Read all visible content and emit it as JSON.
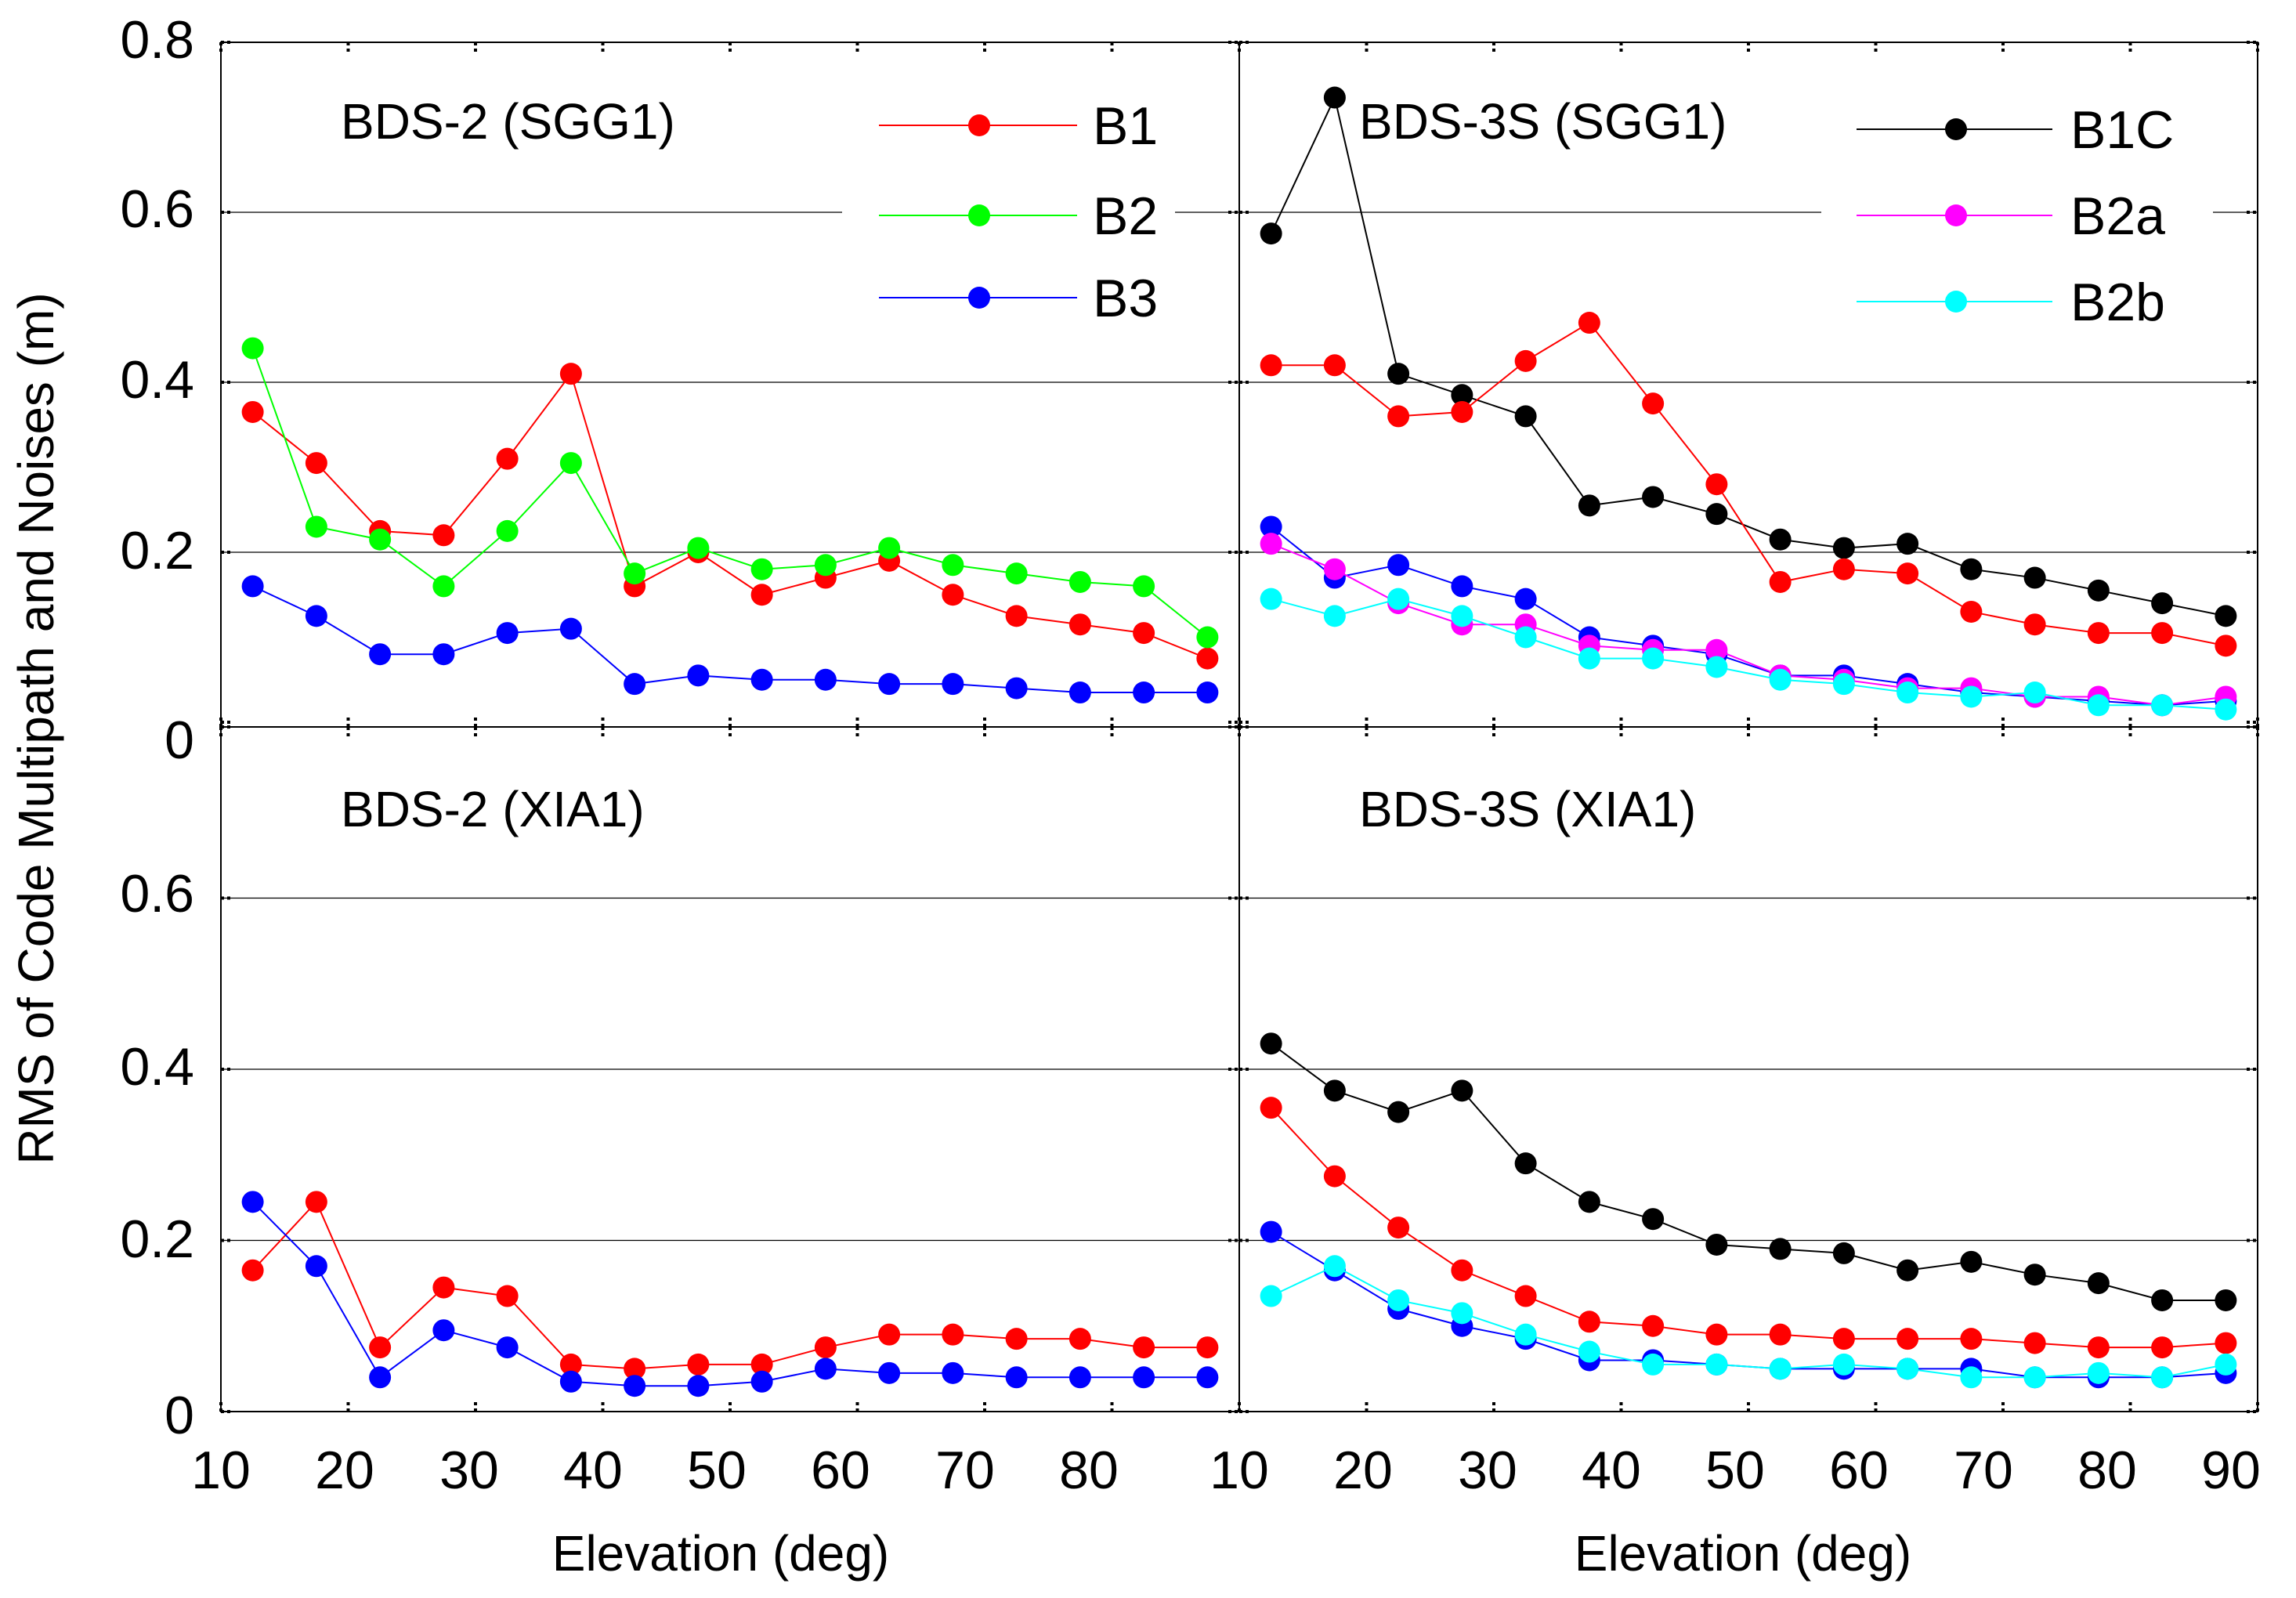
{
  "figure": {
    "ylabel": "RMS of Code Multipath and Noises (m)",
    "xlabel": "Elevation (deg)",
    "ytick_labels": [
      "0",
      "0.2",
      "0.4",
      "0.6",
      "0.8"
    ],
    "xtick_labels_left": [
      "10",
      "20",
      "30",
      "40",
      "50",
      "60",
      "70",
      "80"
    ],
    "xtick_labels_right": [
      "10",
      "20",
      "30",
      "40",
      "50",
      "60",
      "70",
      "80",
      "90"
    ]
  },
  "legend_left": [
    {
      "label": "B1",
      "color": "#ff0000"
    },
    {
      "label": "B2",
      "color": "#00ff00"
    },
    {
      "label": "B3",
      "color": "#0000ff"
    }
  ],
  "legend_right": [
    {
      "label": "B1C",
      "color": "#000000"
    },
    {
      "label": "B2a",
      "color": "#ff00ff"
    },
    {
      "label": "B2b",
      "color": "#00ffff"
    }
  ],
  "chart_data": [
    {
      "type": "line",
      "title": "BDS-2  (SGG1)",
      "xlabel": "",
      "ylabel": "RMS of Code Multipath and Noises (m)",
      "xlim": [
        10,
        90
      ],
      "ylim": [
        0,
        0.8
      ],
      "x": [
        12.5,
        17.5,
        22.5,
        27.5,
        32.5,
        37.5,
        42.5,
        47.5,
        52.5,
        57.5,
        62.5,
        67.5,
        72.5,
        77.5,
        82.5,
        87.5
      ],
      "series": [
        {
          "name": "B1",
          "color": "#ff0000",
          "values": [
            0.365,
            0.305,
            0.225,
            0.22,
            0.31,
            0.41,
            0.16,
            0.2,
            0.15,
            0.17,
            0.19,
            0.15,
            0.125,
            0.115,
            0.105,
            0.075
          ]
        },
        {
          "name": "B2",
          "color": "#00ff00",
          "values": [
            0.44,
            0.23,
            0.215,
            0.16,
            0.225,
            0.305,
            0.175,
            0.205,
            0.18,
            0.185,
            0.205,
            0.185,
            0.175,
            0.165,
            0.16,
            0.1
          ]
        },
        {
          "name": "B3",
          "color": "#0000ff",
          "values": [
            0.16,
            0.125,
            0.08,
            0.08,
            0.105,
            0.11,
            0.045,
            0.055,
            0.05,
            0.05,
            0.045,
            0.045,
            0.04,
            0.035,
            0.035,
            0.035
          ]
        }
      ]
    },
    {
      "type": "line",
      "title": "BDS-3S  (SGG1)",
      "xlabel": "",
      "ylabel": "",
      "xlim": [
        10,
        90
      ],
      "ylim": [
        0,
        0.8
      ],
      "x": [
        12.5,
        17.5,
        22.5,
        27.5,
        32.5,
        37.5,
        42.5,
        47.5,
        52.5,
        57.5,
        62.5,
        67.5,
        72.5,
        77.5,
        82.5,
        87.5
      ],
      "series": [
        {
          "name": "B1C",
          "color": "#000000",
          "values": [
            0.575,
            0.735,
            0.41,
            0.385,
            0.36,
            0.255,
            0.265,
            0.245,
            0.215,
            0.205,
            0.21,
            0.18,
            0.17,
            0.155,
            0.14,
            0.125
          ]
        },
        {
          "name": "B1",
          "color": "#ff0000",
          "values": [
            0.42,
            0.42,
            0.36,
            0.365,
            0.425,
            0.47,
            0.375,
            0.28,
            0.165,
            0.18,
            0.175,
            0.13,
            0.115,
            0.105,
            0.105,
            0.09
          ]
        },
        {
          "name": "B3",
          "color": "#0000ff",
          "values": [
            0.23,
            0.17,
            0.185,
            0.16,
            0.145,
            0.1,
            0.09,
            0.08,
            0.055,
            0.055,
            0.045,
            0.035,
            0.03,
            0.025,
            0.02,
            0.025
          ]
        },
        {
          "name": "B2a",
          "color": "#ff00ff",
          "values": [
            0.21,
            0.18,
            0.14,
            0.115,
            0.115,
            0.09,
            0.085,
            0.085,
            0.055,
            0.05,
            0.04,
            0.04,
            0.03,
            0.03,
            0.02,
            0.03
          ]
        },
        {
          "name": "B2b",
          "color": "#00ffff",
          "values": [
            0.145,
            0.125,
            0.145,
            0.125,
            0.1,
            0.075,
            0.075,
            0.065,
            0.05,
            0.045,
            0.035,
            0.03,
            0.035,
            0.02,
            0.02,
            0.015
          ]
        }
      ]
    },
    {
      "type": "line",
      "title": "BDS-2  (XIA1)",
      "xlabel": "Elevation (deg)",
      "ylabel": "",
      "xlim": [
        10,
        90
      ],
      "ylim": [
        0,
        0.8
      ],
      "x": [
        12.5,
        17.5,
        22.5,
        27.5,
        32.5,
        37.5,
        42.5,
        47.5,
        52.5,
        57.5,
        62.5,
        67.5,
        72.5,
        77.5,
        82.5,
        87.5
      ],
      "series": [
        {
          "name": "B1",
          "color": "#ff0000",
          "values": [
            0.165,
            0.245,
            0.075,
            0.145,
            0.135,
            0.055,
            0.05,
            0.055,
            0.055,
            0.075,
            0.09,
            0.09,
            0.085,
            0.085,
            0.075,
            0.075
          ]
        },
        {
          "name": "B3",
          "color": "#0000ff",
          "values": [
            0.245,
            0.17,
            0.04,
            0.095,
            0.075,
            0.035,
            0.03,
            0.03,
            0.035,
            0.05,
            0.045,
            0.045,
            0.04,
            0.04,
            0.04,
            0.04
          ]
        }
      ]
    },
    {
      "type": "line",
      "title": "BDS-3S  (XIA1)",
      "xlabel": "Elevation (deg)",
      "ylabel": "",
      "xlim": [
        10,
        90
      ],
      "ylim": [
        0,
        0.8
      ],
      "x": [
        12.5,
        17.5,
        22.5,
        27.5,
        32.5,
        37.5,
        42.5,
        47.5,
        52.5,
        57.5,
        62.5,
        67.5,
        72.5,
        77.5,
        82.5,
        87.5
      ],
      "series": [
        {
          "name": "B1C",
          "color": "#000000",
          "values": [
            0.43,
            0.375,
            0.35,
            0.375,
            0.29,
            0.245,
            0.225,
            0.195,
            0.19,
            0.185,
            0.165,
            0.175,
            0.16,
            0.15,
            0.13,
            0.13
          ]
        },
        {
          "name": "B1",
          "color": "#ff0000",
          "values": [
            0.355,
            0.275,
            0.215,
            0.165,
            0.135,
            0.105,
            0.1,
            0.09,
            0.09,
            0.085,
            0.085,
            0.085,
            0.08,
            0.075,
            0.075,
            0.08
          ]
        },
        {
          "name": "B3",
          "color": "#0000ff",
          "values": [
            0.21,
            0.165,
            0.12,
            0.1,
            0.085,
            0.06,
            0.06,
            0.055,
            0.05,
            0.05,
            0.05,
            0.05,
            0.04,
            0.04,
            0.04,
            0.045
          ]
        },
        {
          "name": "B2b",
          "color": "#00ffff",
          "values": [
            0.135,
            0.17,
            0.13,
            0.115,
            0.09,
            0.07,
            0.055,
            0.055,
            0.05,
            0.055,
            0.05,
            0.04,
            0.04,
            0.045,
            0.04,
            0.055
          ]
        }
      ]
    }
  ]
}
